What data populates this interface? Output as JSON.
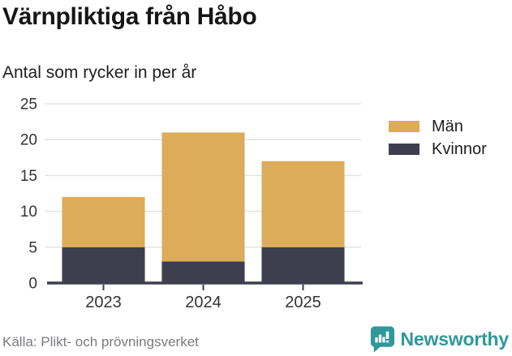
{
  "header": {
    "title": "Värnpliktiga från Håbo",
    "subtitle": "Antal som rycker in per år"
  },
  "chart_data": {
    "type": "bar",
    "stacked": true,
    "title": "Värnpliktiga från Håbo",
    "subtitle": "Antal som rycker in per år",
    "categories": [
      "2023",
      "2024",
      "2025"
    ],
    "series": [
      {
        "name": "Män",
        "color": "#DCAC5A",
        "values": [
          7,
          18,
          12
        ]
      },
      {
        "name": "Kvinnor",
        "color": "#3F3E4F",
        "values": [
          5,
          3,
          5
        ]
      }
    ],
    "stack_order_bottom_to_top": [
      "Kvinnor",
      "Män"
    ],
    "totals": [
      12,
      21,
      17
    ],
    "xlabel": "",
    "ylabel": "",
    "ylim": [
      0,
      25
    ],
    "yticks": [
      0,
      5,
      10,
      15,
      20,
      25
    ],
    "grid": true,
    "gridline_color": "#E3E3E3",
    "axis_color": "#3F3E4F",
    "tick_label_color": "#333333",
    "legend_position": "right"
  },
  "legend": {
    "items": [
      {
        "label": "Män",
        "color": "#DCAC5A"
      },
      {
        "label": "Kvinnor",
        "color": "#3F3E4F"
      }
    ]
  },
  "footer": {
    "source": "Källa: Plikt- och prövningsverket",
    "brand": "Newsworthy",
    "brand_color": "#2F9899",
    "logo_icon": "bar-chart-speech-bubble-icon"
  }
}
